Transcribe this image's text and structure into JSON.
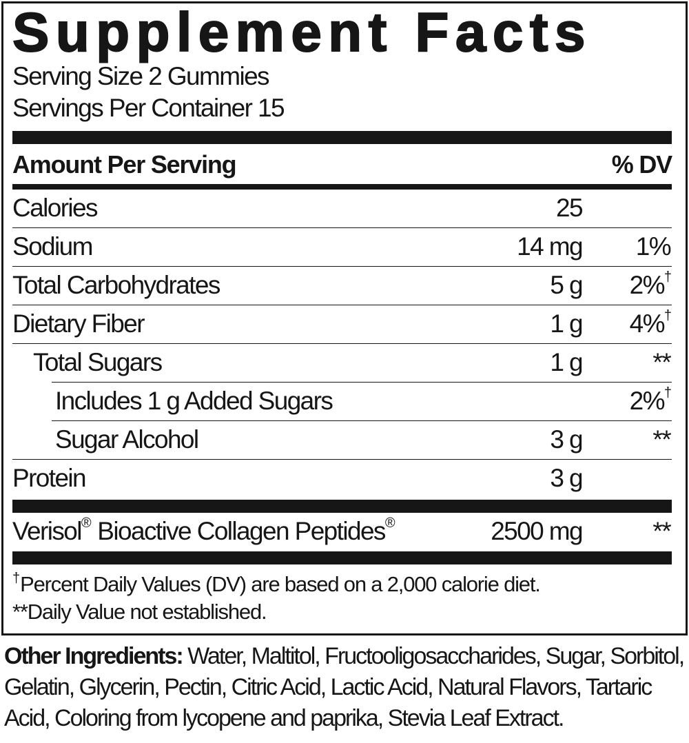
{
  "title": "Supplement Facts",
  "serving_size": "Serving Size 2 Gummies",
  "servings_per_container": "Servings Per Container 15",
  "header": {
    "amount": "Amount Per Serving",
    "dv": "% DV"
  },
  "rows": [
    {
      "name": "Calories",
      "amount": "25",
      "dv": ""
    },
    {
      "name": "Sodium",
      "amount": "14 mg",
      "dv": "1%"
    },
    {
      "name": "Total Carbohydrates",
      "amount": "5 g",
      "dv": "2%",
      "dv_mark": "†"
    },
    {
      "name": "Dietary Fiber",
      "amount": "1 g",
      "dv": "4%",
      "dv_mark": "†"
    },
    {
      "name": "Total Sugars",
      "amount": "1 g",
      "dv": "**"
    },
    {
      "name": "Includes 1 g Added Sugars",
      "amount": "",
      "dv": "2%",
      "dv_mark": "†"
    },
    {
      "name": "Sugar Alcohol",
      "amount": "3 g",
      "dv": "**"
    },
    {
      "name": "Protein",
      "amount": "3 g",
      "dv": ""
    }
  ],
  "collagen": {
    "name_a": "Verisol",
    "reg1": "®",
    "name_b": " Bioactive Collagen Peptides",
    "reg2": "®",
    "amount": "2500 mg",
    "dv": "**"
  },
  "footnotes": {
    "dagger": "†",
    "line1": "Percent Daily Values (DV) are based on a 2,000 calorie diet.",
    "line2": "**Daily Value not established."
  },
  "ingredients": {
    "label": "Other Ingredients:",
    "text": " Water, Maltitol, Fructooligosaccharides, Sugar, Sorbitol, Gelatin, Glycerin, Pectin, Citric Acid, Lactic Acid, Natural Flavors, Tartaric Acid, Coloring from lycopene and paprika, Stevia Leaf Extract."
  }
}
